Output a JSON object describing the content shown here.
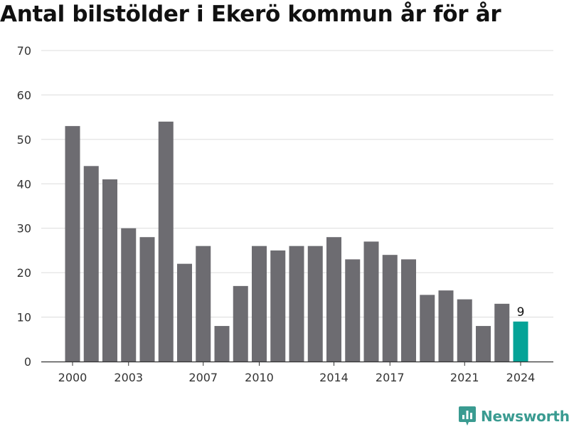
{
  "chart_data": {
    "type": "bar",
    "title": "Antal bilstölder i Ekerö kommun år för år",
    "xlabel": "",
    "ylabel": "",
    "categories": [
      2000,
      2001,
      2002,
      2003,
      2004,
      2005,
      2006,
      2007,
      2008,
      2009,
      2010,
      2011,
      2012,
      2013,
      2014,
      2015,
      2016,
      2017,
      2018,
      2019,
      2020,
      2021,
      2022,
      2023,
      2024
    ],
    "values": [
      53,
      44,
      41,
      30,
      28,
      54,
      22,
      26,
      8,
      17,
      26,
      25,
      26,
      26,
      28,
      23,
      27,
      24,
      23,
      15,
      16,
      14,
      8,
      13,
      9
    ],
    "ylim": [
      0,
      70
    ],
    "yticks": [
      "0",
      "10",
      "20",
      "30",
      "40",
      "50",
      "60",
      "70"
    ],
    "xticks": [
      "2000",
      "2003",
      "2007",
      "2010",
      "2014",
      "2017",
      "2021",
      "2024"
    ],
    "grid": true,
    "bar_color": "#6d6c71",
    "highlight_color": "#05a397",
    "highlight_label": "9"
  },
  "branding": {
    "logo_text": "Newsworthy",
    "logo_icon": "newsworthy-chart-icon",
    "logo_color": "#3a9b91"
  }
}
